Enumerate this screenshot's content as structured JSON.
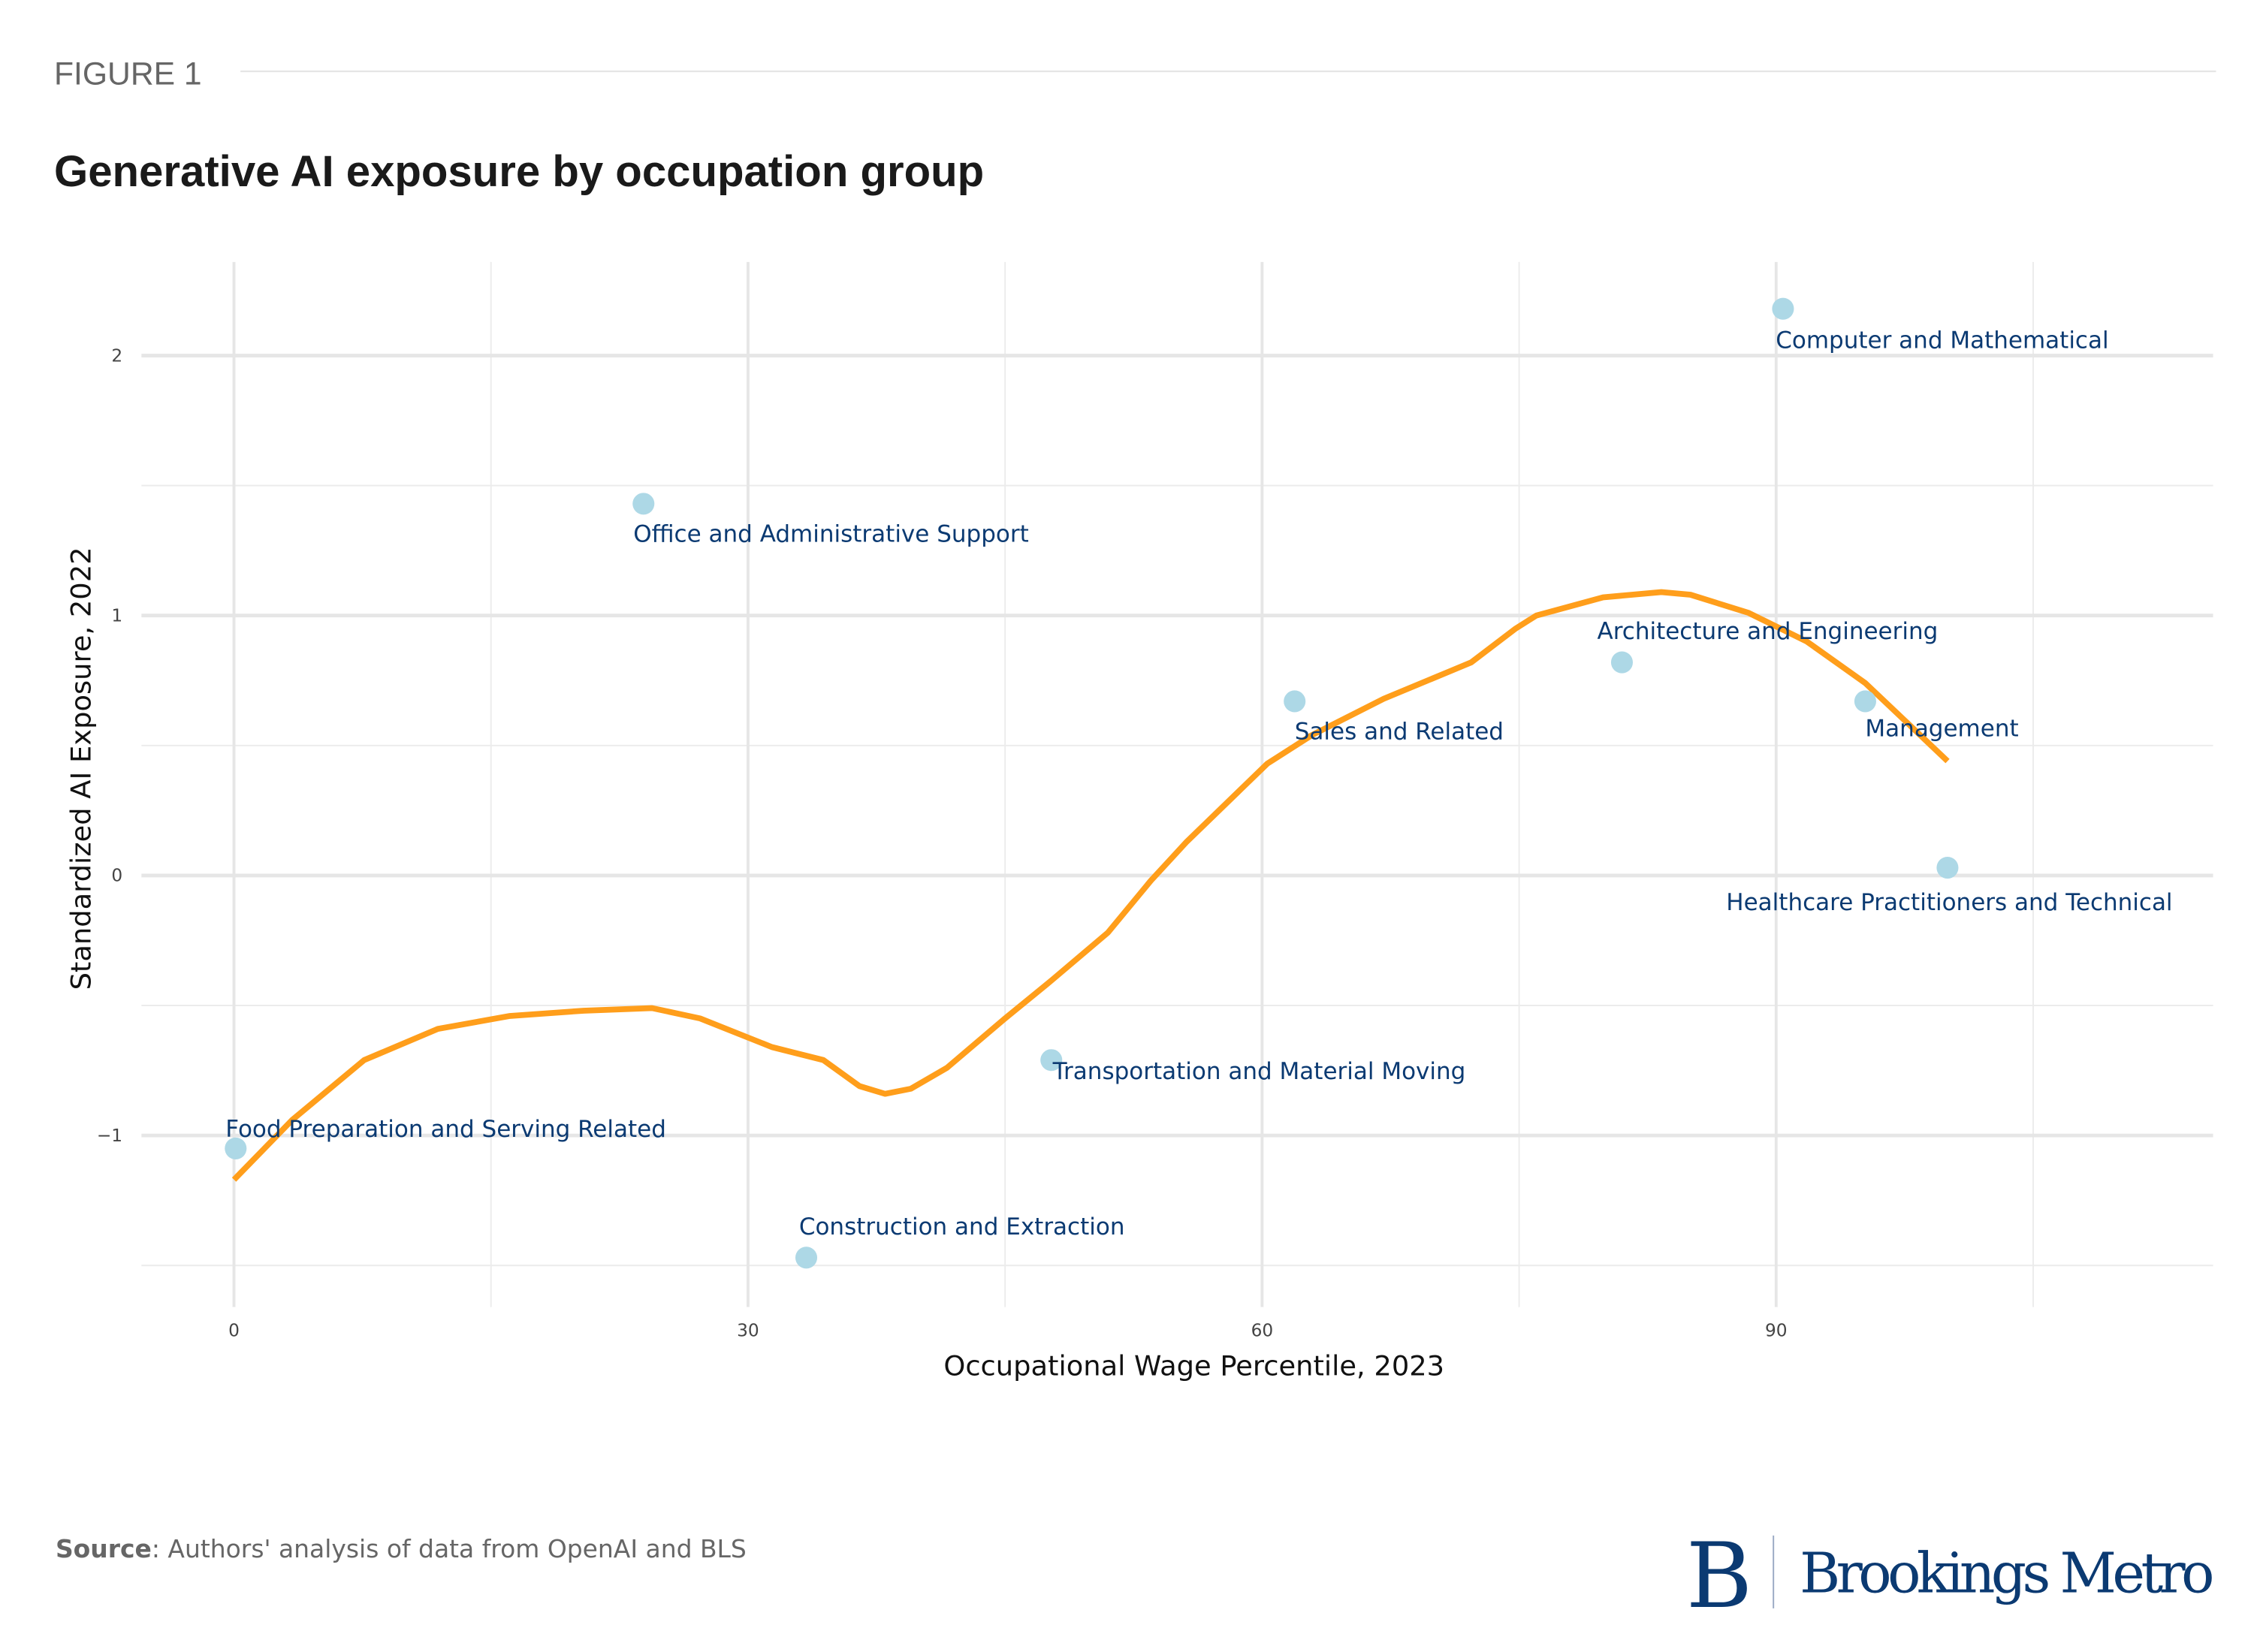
{
  "header": {
    "figure_label": "FIGURE 1"
  },
  "chart_data": {
    "type": "scatter",
    "title": "Generative AI exposure by occupation group",
    "xlabel": "Occupational Wage Percentile, 2023",
    "ylabel": "Standardized AI Exposure, 2022",
    "xlim": [
      -5.4,
      115.5
    ],
    "ylim": [
      -1.66,
      2.36
    ],
    "xticks": [
      0,
      30,
      60,
      90
    ],
    "yticks": [
      -1,
      0,
      1,
      2
    ],
    "ytick_labels": [
      "−1",
      "0",
      "1",
      "2"
    ],
    "grid": true,
    "colors": {
      "points": "#add8e6",
      "trend": "#ff9e1b",
      "labels": "#0b3a72"
    },
    "points": [
      {
        "label": "Food Preparation and Serving Related",
        "x": 0.1,
        "y": -1.05
      },
      {
        "label": "Office and Administrative Support",
        "x": 23.9,
        "y": 1.43
      },
      {
        "label": "Construction and Extraction",
        "x": 33.4,
        "y": -1.47
      },
      {
        "label": "Transportation and Material Moving",
        "x": 47.7,
        "y": -0.71
      },
      {
        "label": "Sales and Related",
        "x": 61.9,
        "y": 0.67
      },
      {
        "label": "Architecture and Engineering",
        "x": 81.0,
        "y": 0.82
      },
      {
        "label": "Computer and Mathematical",
        "x": 90.4,
        "y": 2.18
      },
      {
        "label": "Management",
        "x": 95.2,
        "y": 0.67
      },
      {
        "label": "Healthcare Practitioners and Technical",
        "x": 100.0,
        "y": 0.03
      }
    ],
    "trend_line": {
      "x": [
        0,
        3.4,
        7.6,
        11.9,
        16.1,
        20.4,
        24.4,
        27.2,
        31.4,
        34.4,
        36.5,
        38.0,
        39.5,
        41.6,
        45.0,
        47.6,
        51.0,
        53.5,
        55.6,
        60.3,
        62.9,
        67.1,
        72.2,
        74.8,
        76.0,
        79.9,
        83.3,
        85.0,
        88.4,
        91.8,
        95.2,
        100
      ],
      "y": [
        -1.17,
        -0.94,
        -0.71,
        -0.59,
        -0.54,
        -0.52,
        -0.51,
        -0.55,
        -0.66,
        -0.71,
        -0.81,
        -0.84,
        -0.82,
        -0.74,
        -0.55,
        -0.41,
        -0.22,
        -0.02,
        0.13,
        0.43,
        0.54,
        0.68,
        0.82,
        0.95,
        1.0,
        1.07,
        1.09,
        1.08,
        1.01,
        0.9,
        0.74,
        0.44
      ]
    }
  },
  "footer": {
    "source_bold": "Source",
    "source_text": ": Authors' analysis of data from OpenAI and BLS",
    "logo_letter": "B",
    "logo_text": "Brookings Metro"
  }
}
